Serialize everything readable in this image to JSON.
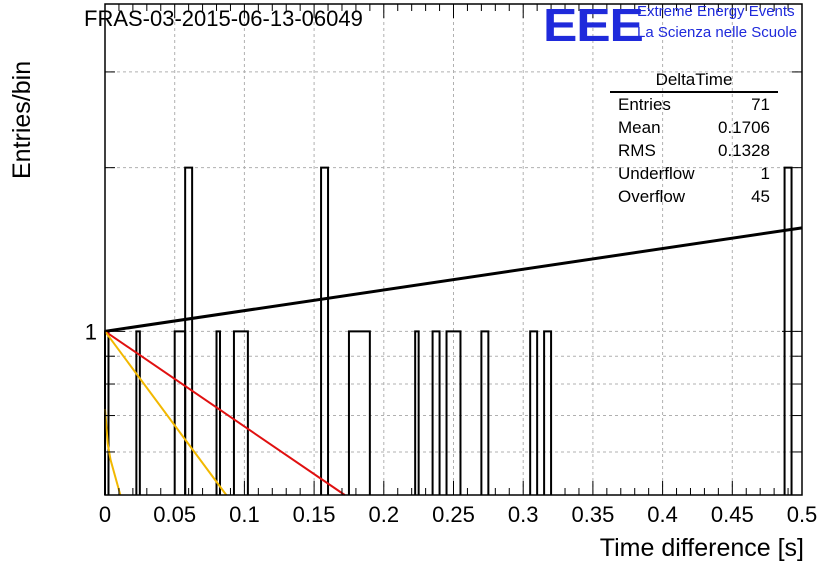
{
  "header": {
    "title": "FRAS-03-2015-06-13-06049",
    "logo_text": "EEE",
    "logo_line1": "Extreme Energy Events",
    "logo_line2": "La Scienza nelle Scuole"
  },
  "stats": {
    "title": "DeltaTime",
    "rows": [
      {
        "label": "Entries",
        "value": "71"
      },
      {
        "label": "Mean",
        "value": "0.1706"
      },
      {
        "label": "RMS",
        "value": "0.1328"
      },
      {
        "label": "Underflow",
        "value": "1"
      },
      {
        "label": "Overflow",
        "value": "45"
      }
    ]
  },
  "colors": {
    "histogram": "#000000",
    "fit_black": "#000000",
    "fit_red": "#e01010",
    "fit_yellow": "#f2b800",
    "grid": "#b0b0b0"
  },
  "chart_data": {
    "type": "histogram",
    "xlabel": "Time difference [s]",
    "ylabel": "Entries/bin",
    "xlim": [
      0,
      0.5
    ],
    "log_y": true,
    "ylim": [
      0.5,
      4.0
    ],
    "x_ticks": [
      "0",
      "0.05",
      "0.1",
      "0.15",
      "0.2",
      "0.25",
      "0.3",
      "0.35",
      "0.4",
      "0.45",
      "0.5"
    ],
    "x_tick_values": [
      0,
      0.05,
      0.1,
      0.15,
      0.2,
      0.25,
      0.3,
      0.35,
      0.4,
      0.45,
      0.5
    ],
    "y_tick_labels": [
      "1"
    ],
    "y_tick_values": [
      1
    ],
    "bins": [
      {
        "x0": 0.0,
        "x1": 0.0025,
        "count": 1
      },
      {
        "x0": 0.0225,
        "x1": 0.025,
        "count": 1
      },
      {
        "x0": 0.05,
        "x1": 0.0575,
        "count": 1
      },
      {
        "x0": 0.0575,
        "x1": 0.0625,
        "count": 2
      },
      {
        "x0": 0.08,
        "x1": 0.0825,
        "count": 1
      },
      {
        "x0": 0.0925,
        "x1": 0.1025,
        "count": 1
      },
      {
        "x0": 0.155,
        "x1": 0.16,
        "count": 2
      },
      {
        "x0": 0.175,
        "x1": 0.19,
        "count": 1
      },
      {
        "x0": 0.2225,
        "x1": 0.225,
        "count": 1
      },
      {
        "x0": 0.235,
        "x1": 0.24,
        "count": 1
      },
      {
        "x0": 0.245,
        "x1": 0.255,
        "count": 1
      },
      {
        "x0": 0.27,
        "x1": 0.275,
        "count": 1
      },
      {
        "x0": 0.305,
        "x1": 0.31,
        "count": 1
      },
      {
        "x0": 0.315,
        "x1": 0.32,
        "count": 1
      },
      {
        "x0": 0.4875,
        "x1": 0.4925,
        "count": 2
      }
    ],
    "fits": [
      {
        "color": "black",
        "points": [
          [
            0.0,
            1.0
          ],
          [
            0.5,
            1.55
          ]
        ]
      },
      {
        "color": "red",
        "points": [
          [
            0.0,
            1.0
          ],
          [
            0.172,
            0.5
          ]
        ]
      },
      {
        "color": "yellow",
        "points": [
          [
            0.0,
            1.0
          ],
          [
            0.087,
            0.5
          ]
        ]
      },
      {
        "color": "yellow",
        "points": [
          [
            0.0,
            0.72
          ],
          [
            0.002,
            0.62
          ],
          [
            0.004,
            0.58
          ],
          [
            0.011,
            0.5
          ]
        ]
      }
    ],
    "grid": true
  }
}
